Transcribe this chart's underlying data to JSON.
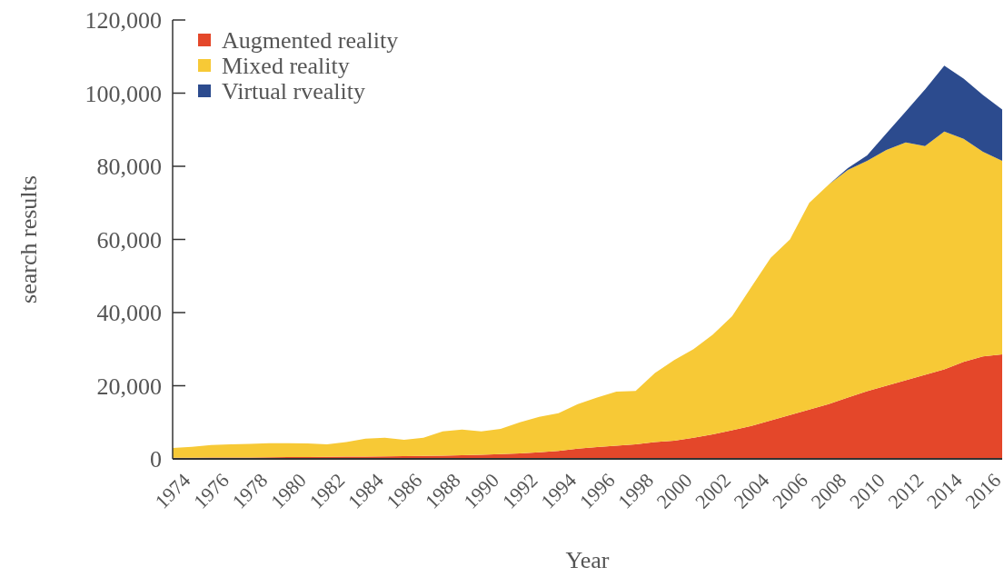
{
  "chart_data": {
    "type": "area",
    "stacked": true,
    "xlabel": "Year",
    "ylabel": "search results",
    "legend": "top left",
    "x": [
      1974,
      1975,
      1976,
      1977,
      1978,
      1979,
      1980,
      1981,
      1982,
      1983,
      1984,
      1985,
      1986,
      1987,
      1988,
      1989,
      1990,
      1991,
      1992,
      1993,
      1994,
      1995,
      1996,
      1997,
      1998,
      1999,
      2000,
      2001,
      2002,
      2003,
      2004,
      2005,
      2006,
      2007,
      2008,
      2009,
      2010,
      2011,
      2012,
      2013,
      2014,
      2015,
      2016,
      2017
    ],
    "xlim": [
      1974,
      2017
    ],
    "xticks": [
      1974,
      1976,
      1978,
      1980,
      1982,
      1984,
      1986,
      1988,
      1990,
      1992,
      1994,
      1996,
      1998,
      2000,
      2002,
      2004,
      2006,
      2008,
      2010,
      2012,
      2014,
      2016
    ],
    "ylim": [
      0,
      120000
    ],
    "yticks": [
      0,
      {
        "value": 20000,
        "label": "20,000"
      },
      {
        "value": 40000,
        "label": "40,000"
      },
      {
        "value": 60000,
        "label": "60,000"
      },
      {
        "value": 80000,
        "label": "80,000"
      },
      {
        "value": 100000,
        "label": "100,000"
      },
      {
        "value": 120000,
        "label": "120,000"
      }
    ],
    "series": [
      {
        "name": "Augmented reality",
        "color": "#e4472a",
        "values": [
          300,
          300,
          350,
          400,
          400,
          450,
          500,
          500,
          550,
          600,
          650,
          700,
          750,
          800,
          900,
          1000,
          1100,
          1300,
          1500,
          1800,
          2200,
          2800,
          3200,
          3600,
          4000,
          4600,
          5000,
          5800,
          6700,
          7800,
          9000,
          10500,
          12000,
          13500,
          15000,
          16800,
          18500,
          20000,
          21500,
          23000,
          24500,
          26500,
          28000,
          28600
        ]
      },
      {
        "name": "Mixed reality",
        "color": "#f7c936",
        "values": [
          2700,
          3000,
          3450,
          3600,
          3700,
          3850,
          3800,
          3700,
          3450,
          4000,
          4850,
          5100,
          4450,
          5000,
          6600,
          7000,
          6400,
          6900,
          8500,
          9700,
          10300,
          12200,
          13600,
          14800,
          14600,
          18900,
          22000,
          24200,
          27300,
          31200,
          38000,
          44500,
          48000,
          56500,
          60000,
          62200,
          63000,
          64500,
          65000,
          62500,
          65000,
          61000,
          56000,
          52900
        ]
      },
      {
        "name": "Virtual rveality",
        "color": "#2c4b8e",
        "values": [
          0,
          0,
          0,
          0,
          0,
          0,
          0,
          0,
          0,
          0,
          0,
          0,
          0,
          0,
          0,
          0,
          0,
          0,
          0,
          0,
          0,
          0,
          0,
          0,
          0,
          0,
          0,
          0,
          0,
          0,
          0,
          0,
          0,
          0,
          0,
          500,
          1500,
          4500,
          8500,
          15500,
          18000,
          16500,
          15500,
          14000
        ]
      }
    ]
  }
}
